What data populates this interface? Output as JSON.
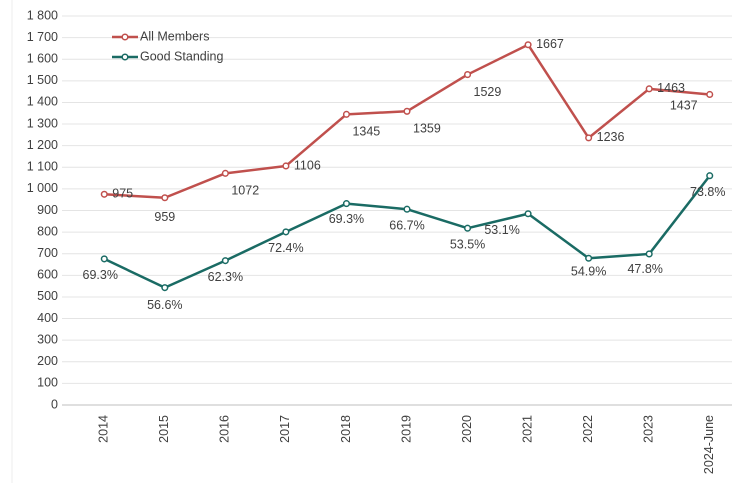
{
  "chart_data": {
    "type": "line",
    "categories": [
      "2014",
      "2015",
      "2016",
      "2017",
      "2018",
      "2019",
      "2020",
      "2021",
      "2022",
      "2023",
      "2024-June"
    ],
    "series": [
      {
        "name": "All Members",
        "color": "#c0504d",
        "values": [
          975,
          959,
          1072,
          1106,
          1345,
          1359,
          1529,
          1667,
          1236,
          1463,
          1437
        ]
      },
      {
        "name": "Good Standing",
        "color": "#1a6b64",
        "values": [
          676,
          543,
          668,
          801,
          932,
          906,
          818,
          885,
          679,
          699,
          1061
        ],
        "value_labels": [
          "69.3%",
          "56.6%",
          "62.3%",
          "72.4%",
          "69.3%",
          "66.7%",
          "53.5%",
          "53.1%",
          "54.9%",
          "47.8%",
          "73.8%"
        ]
      }
    ],
    "ylim": [
      0,
      1800
    ],
    "yticks": [
      0,
      100,
      200,
      300,
      400,
      500,
      600,
      700,
      800,
      900,
      {
        "value": 1000,
        "label": "1 000"
      },
      {
        "value": 1100,
        "label": "1 100"
      },
      {
        "value": 1200,
        "label": "1 200"
      },
      {
        "value": 1300,
        "label": "1 300"
      },
      {
        "value": 1400,
        "label": "1 400"
      },
      {
        "value": 1500,
        "label": "1 500"
      },
      {
        "value": 1600,
        "label": "1 600"
      },
      {
        "value": 1700,
        "label": "1 700"
      },
      {
        "value": 1800,
        "label": "1 800"
      }
    ],
    "grid": true,
    "legend": "top-left"
  }
}
